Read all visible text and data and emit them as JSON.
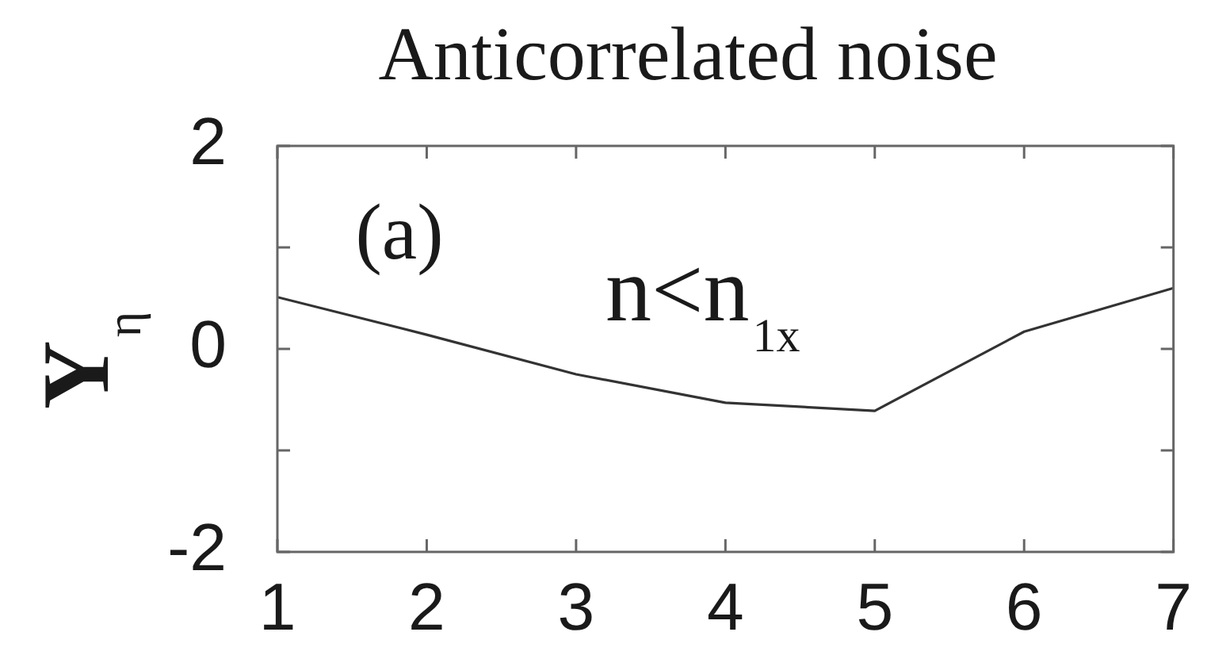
{
  "chart_data": {
    "type": "line",
    "title": "Anticorrelated noise",
    "ylabel": "Y$_{η}$",
    "annotations": [
      "(a)",
      "n<n$_{1x}$"
    ],
    "x": [
      1,
      2,
      3,
      4,
      5,
      6,
      7
    ],
    "series": [
      {
        "color": "#333333",
        "values": [
          0.51,
          0.14,
          -0.25,
          -0.53,
          -0.61,
          0.17,
          0.6
        ]
      }
    ],
    "xlim": [
      1,
      7
    ],
    "xticks": [
      1,
      2,
      3,
      4,
      5,
      6,
      7
    ],
    "ylim": [
      -2,
      2
    ],
    "yticks": [
      -2,
      {
        "value": -1,
        "label": null
      },
      0,
      {
        "value": 1,
        "label": null
      },
      2
    ],
    "grid": false,
    "legend": false,
    "marker": "none",
    "line_style": "solid"
  }
}
